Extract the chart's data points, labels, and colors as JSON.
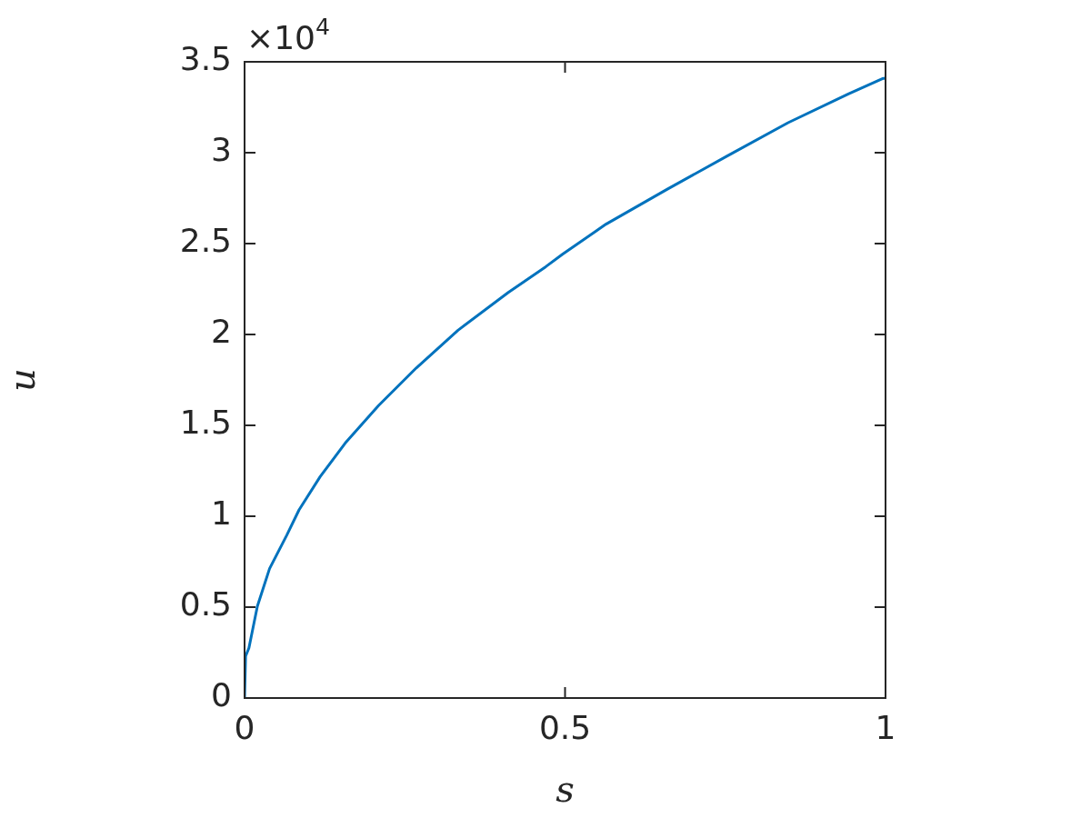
{
  "chart_data": {
    "type": "line",
    "xlabel": "s",
    "ylabel": "u",
    "x": [
      0,
      0.0016,
      0.0068,
      0.02,
      0.039,
      0.066,
      0.085,
      0.118,
      0.157,
      0.209,
      0.268,
      0.333,
      0.411,
      0.47,
      0.496,
      0.564,
      0.659,
      0.753,
      0.848,
      0.942,
      0.995,
      1
    ],
    "series": [
      {
        "color": "#0072bd",
        "values": [
          0,
          0.23,
          0.275,
          0.505,
          0.712,
          0.897,
          1.035,
          1.218,
          1.402,
          1.609,
          1.816,
          2.023,
          2.23,
          2.373,
          2.441,
          2.607,
          2.798,
          2.982,
          3.165,
          3.323,
          3.407,
          3.41
        ]
      }
    ],
    "xlim": [
      0,
      1
    ],
    "xticks": [
      0,
      0.5,
      1
    ],
    "ylim": [
      0,
      3.5
    ],
    "yticks": [
      0,
      0.5,
      1,
      1.5,
      2,
      2.5,
      3,
      3.5
    ],
    "annotations": [
      "×10$^{4}$"
    ],
    "grid": false,
    "legend": false,
    "marker": "none",
    "line_style": "solid"
  }
}
